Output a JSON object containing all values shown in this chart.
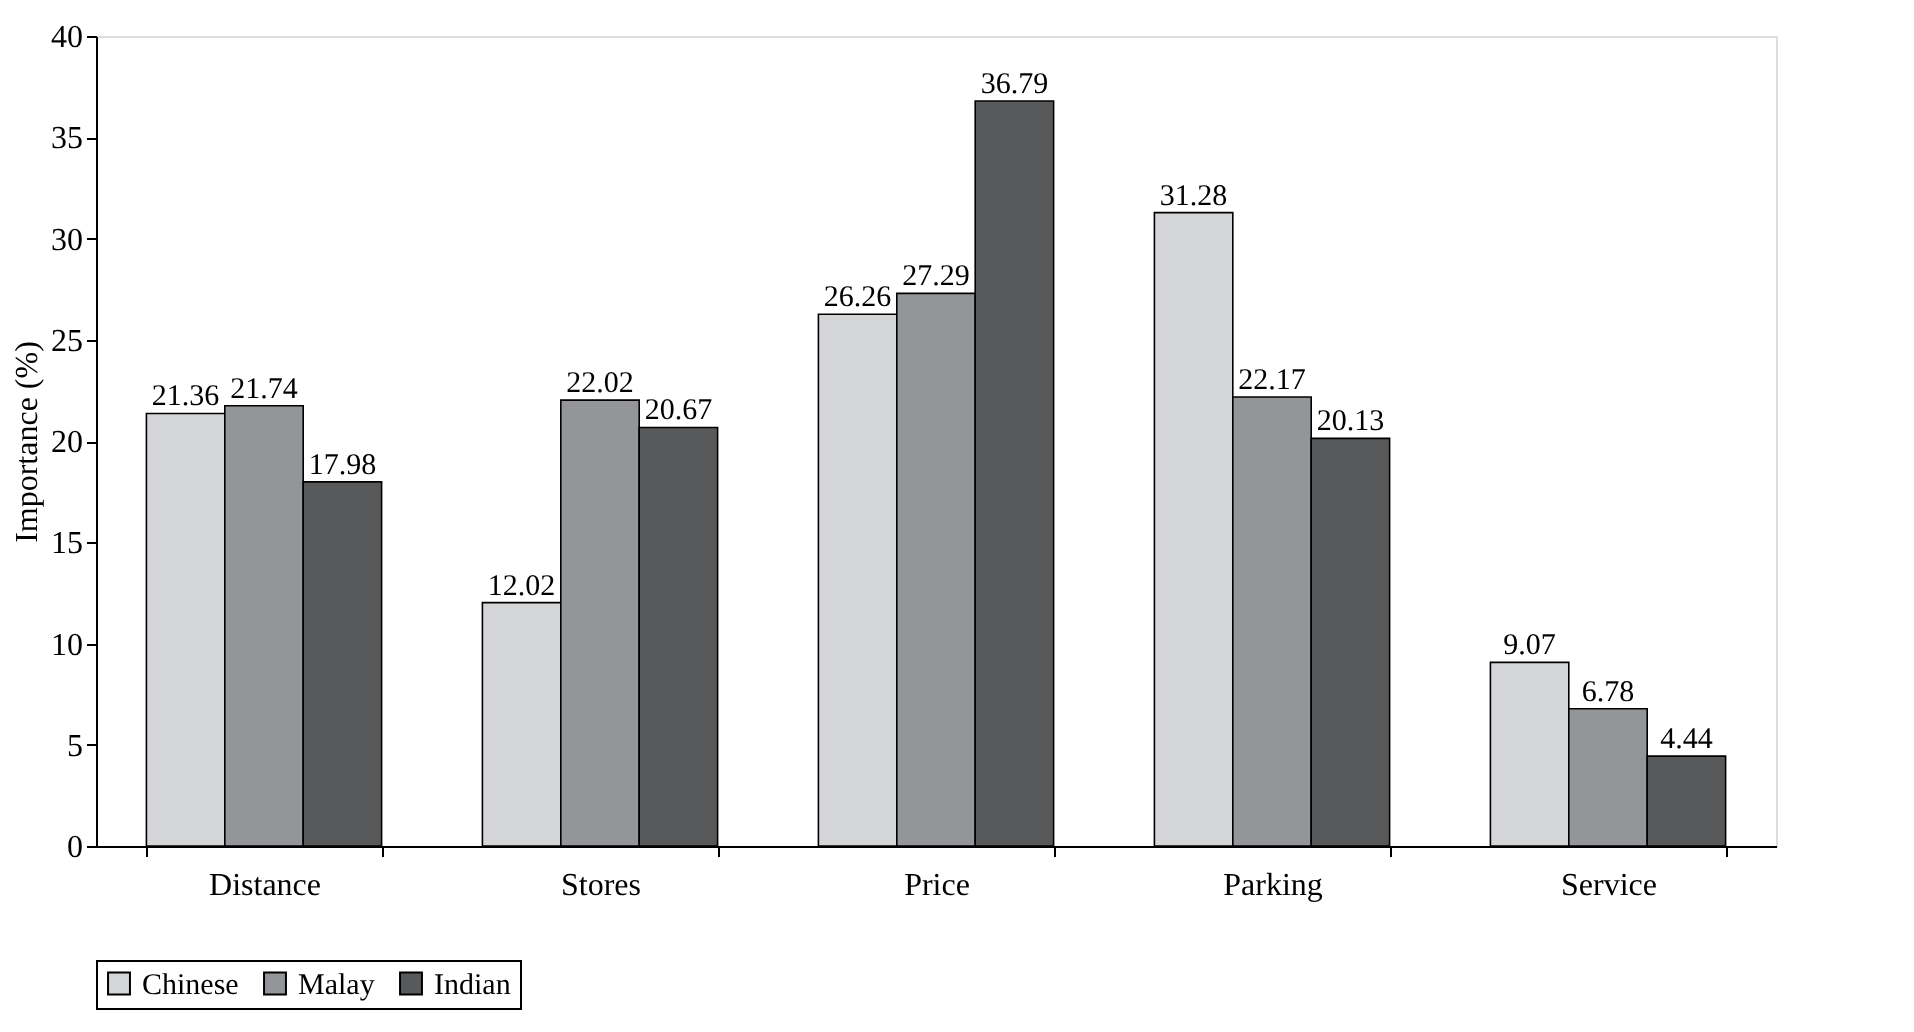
{
  "chart_data": {
    "type": "bar",
    "ylabel": "Importance (%)",
    "categories": [
      "Distance",
      "Stores",
      "Price",
      "Parking",
      "Service"
    ],
    "series": [
      {
        "name": "Chinese",
        "color": "#d4d5d7",
        "values": [
          21.36,
          12.02,
          26.26,
          31.28,
          9.07
        ]
      },
      {
        "name": "Malay",
        "color": "#939598",
        "values": [
          21.74,
          22.02,
          27.29,
          22.17,
          6.78
        ]
      },
      {
        "name": "Indian",
        "color": "#58595b",
        "values": [
          17.98,
          20.67,
          36.79,
          20.13,
          4.44
        ]
      }
    ],
    "ylim": [
      0,
      40
    ],
    "yticks": [
      0,
      5,
      10,
      15,
      20,
      25,
      30,
      35,
      40
    ],
    "data_labels": true,
    "legend": "bottom"
  }
}
